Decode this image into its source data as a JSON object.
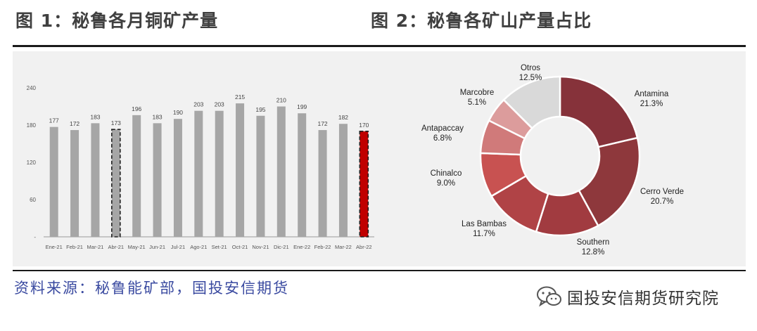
{
  "header": {
    "fig1_title": "图 1：秘鲁各月铜矿产量",
    "fig2_title": "图 2：秘鲁各矿山产量占比"
  },
  "footer": {
    "source": "资料来源：秘鲁能矿部，国投安信期货",
    "brand": "国投安信期货研究院",
    "brand_icon": "wechat-icon"
  },
  "chart_data": [
    {
      "type": "bar",
      "title": "",
      "categories": [
        "Ene-21",
        "Feb-21",
        "Mar-21",
        "Abr-21",
        "May-21",
        "Jun-21",
        "Jul-21",
        "Ago-21",
        "Set-21",
        "Oct-21",
        "Nov-21",
        "Dic-21",
        "Ene-22",
        "Feb-22",
        "Mar-22",
        "Abr-22"
      ],
      "values": [
        177,
        172,
        183,
        173,
        196,
        183,
        190,
        203,
        203,
        215,
        195,
        210,
        199,
        172,
        182,
        170
      ],
      "ylim": [
        0,
        240
      ],
      "yticks": [
        0,
        60,
        120,
        180,
        240
      ],
      "ytick_labels": [
        "-",
        "60",
        "120",
        "180",
        "240"
      ],
      "grid": false,
      "data_labels": true,
      "colors": {
        "default": "#a6a6a6",
        "highlight": "#c00000"
      },
      "highlight": [
        {
          "category": "Abr-21",
          "style": "dashed-outline"
        },
        {
          "category": "Abr-22",
          "style": "red-dashed-outline"
        }
      ]
    },
    {
      "type": "pie",
      "style": "donut",
      "title": "",
      "labels": [
        "Antamina",
        "Cerro Verde",
        "Southern",
        "Las Bambas",
        "Chinalco",
        "Antapaccay",
        "Marcobre",
        "Otros"
      ],
      "values": [
        21.3,
        20.7,
        12.8,
        11.7,
        9.0,
        6.8,
        5.1,
        12.5
      ],
      "display_values": [
        "21.3%",
        "20.7%",
        "12.8%",
        "11.7%",
        "9.0%",
        "6.8%",
        "5.1%",
        "12.5%"
      ],
      "colors": [
        "#86323a",
        "#8e383c",
        "#a13b40",
        "#b04346",
        "#c85251",
        "#d07a7a",
        "#dc9c9c",
        "#d9d9d9"
      ]
    }
  ]
}
